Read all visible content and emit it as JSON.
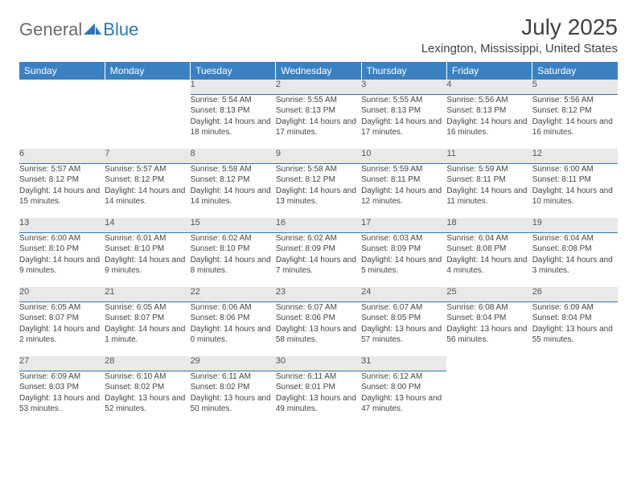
{
  "logo": {
    "text1": "General",
    "text2": "Blue"
  },
  "title": "July 2025",
  "location": "Lexington, Mississippi, United States",
  "colors": {
    "header_bg": "#3a81c3",
    "daynum_bg": "#e9e9e9",
    "daynum_border": "#2f75b5",
    "logo_gray": "#6a6a6a",
    "logo_blue": "#2f75b5"
  },
  "dayNames": [
    "Sunday",
    "Monday",
    "Tuesday",
    "Wednesday",
    "Thursday",
    "Friday",
    "Saturday"
  ],
  "weeks": [
    [
      null,
      null,
      {
        "n": "1",
        "sr": "Sunrise: 5:54 AM",
        "ss": "Sunset: 8:13 PM",
        "dl": "Daylight: 14 hours and 18 minutes."
      },
      {
        "n": "2",
        "sr": "Sunrise: 5:55 AM",
        "ss": "Sunset: 8:13 PM",
        "dl": "Daylight: 14 hours and 17 minutes."
      },
      {
        "n": "3",
        "sr": "Sunrise: 5:55 AM",
        "ss": "Sunset: 8:13 PM",
        "dl": "Daylight: 14 hours and 17 minutes."
      },
      {
        "n": "4",
        "sr": "Sunrise: 5:56 AM",
        "ss": "Sunset: 8:13 PM",
        "dl": "Daylight: 14 hours and 16 minutes."
      },
      {
        "n": "5",
        "sr": "Sunrise: 5:56 AM",
        "ss": "Sunset: 8:12 PM",
        "dl": "Daylight: 14 hours and 16 minutes."
      }
    ],
    [
      {
        "n": "6",
        "sr": "Sunrise: 5:57 AM",
        "ss": "Sunset: 8:12 PM",
        "dl": "Daylight: 14 hours and 15 minutes."
      },
      {
        "n": "7",
        "sr": "Sunrise: 5:57 AM",
        "ss": "Sunset: 8:12 PM",
        "dl": "Daylight: 14 hours and 14 minutes."
      },
      {
        "n": "8",
        "sr": "Sunrise: 5:58 AM",
        "ss": "Sunset: 8:12 PM",
        "dl": "Daylight: 14 hours and 14 minutes."
      },
      {
        "n": "9",
        "sr": "Sunrise: 5:58 AM",
        "ss": "Sunset: 8:12 PM",
        "dl": "Daylight: 14 hours and 13 minutes."
      },
      {
        "n": "10",
        "sr": "Sunrise: 5:59 AM",
        "ss": "Sunset: 8:11 PM",
        "dl": "Daylight: 14 hours and 12 minutes."
      },
      {
        "n": "11",
        "sr": "Sunrise: 5:59 AM",
        "ss": "Sunset: 8:11 PM",
        "dl": "Daylight: 14 hours and 11 minutes."
      },
      {
        "n": "12",
        "sr": "Sunrise: 6:00 AM",
        "ss": "Sunset: 8:11 PM",
        "dl": "Daylight: 14 hours and 10 minutes."
      }
    ],
    [
      {
        "n": "13",
        "sr": "Sunrise: 6:00 AM",
        "ss": "Sunset: 8:10 PM",
        "dl": "Daylight: 14 hours and 9 minutes."
      },
      {
        "n": "14",
        "sr": "Sunrise: 6:01 AM",
        "ss": "Sunset: 8:10 PM",
        "dl": "Daylight: 14 hours and 9 minutes."
      },
      {
        "n": "15",
        "sr": "Sunrise: 6:02 AM",
        "ss": "Sunset: 8:10 PM",
        "dl": "Daylight: 14 hours and 8 minutes."
      },
      {
        "n": "16",
        "sr": "Sunrise: 6:02 AM",
        "ss": "Sunset: 8:09 PM",
        "dl": "Daylight: 14 hours and 7 minutes."
      },
      {
        "n": "17",
        "sr": "Sunrise: 6:03 AM",
        "ss": "Sunset: 8:09 PM",
        "dl": "Daylight: 14 hours and 5 minutes."
      },
      {
        "n": "18",
        "sr": "Sunrise: 6:04 AM",
        "ss": "Sunset: 8:08 PM",
        "dl": "Daylight: 14 hours and 4 minutes."
      },
      {
        "n": "19",
        "sr": "Sunrise: 6:04 AM",
        "ss": "Sunset: 8:08 PM",
        "dl": "Daylight: 14 hours and 3 minutes."
      }
    ],
    [
      {
        "n": "20",
        "sr": "Sunrise: 6:05 AM",
        "ss": "Sunset: 8:07 PM",
        "dl": "Daylight: 14 hours and 2 minutes."
      },
      {
        "n": "21",
        "sr": "Sunrise: 6:05 AM",
        "ss": "Sunset: 8:07 PM",
        "dl": "Daylight: 14 hours and 1 minute."
      },
      {
        "n": "22",
        "sr": "Sunrise: 6:06 AM",
        "ss": "Sunset: 8:06 PM",
        "dl": "Daylight: 14 hours and 0 minutes."
      },
      {
        "n": "23",
        "sr": "Sunrise: 6:07 AM",
        "ss": "Sunset: 8:06 PM",
        "dl": "Daylight: 13 hours and 58 minutes."
      },
      {
        "n": "24",
        "sr": "Sunrise: 6:07 AM",
        "ss": "Sunset: 8:05 PM",
        "dl": "Daylight: 13 hours and 57 minutes."
      },
      {
        "n": "25",
        "sr": "Sunrise: 6:08 AM",
        "ss": "Sunset: 8:04 PM",
        "dl": "Daylight: 13 hours and 56 minutes."
      },
      {
        "n": "26",
        "sr": "Sunrise: 6:09 AM",
        "ss": "Sunset: 8:04 PM",
        "dl": "Daylight: 13 hours and 55 minutes."
      }
    ],
    [
      {
        "n": "27",
        "sr": "Sunrise: 6:09 AM",
        "ss": "Sunset: 8:03 PM",
        "dl": "Daylight: 13 hours and 53 minutes."
      },
      {
        "n": "28",
        "sr": "Sunrise: 6:10 AM",
        "ss": "Sunset: 8:02 PM",
        "dl": "Daylight: 13 hours and 52 minutes."
      },
      {
        "n": "29",
        "sr": "Sunrise: 6:11 AM",
        "ss": "Sunset: 8:02 PM",
        "dl": "Daylight: 13 hours and 50 minutes."
      },
      {
        "n": "30",
        "sr": "Sunrise: 6:11 AM",
        "ss": "Sunset: 8:01 PM",
        "dl": "Daylight: 13 hours and 49 minutes."
      },
      {
        "n": "31",
        "sr": "Sunrise: 6:12 AM",
        "ss": "Sunset: 8:00 PM",
        "dl": "Daylight: 13 hours and 47 minutes."
      },
      null,
      null
    ]
  ]
}
